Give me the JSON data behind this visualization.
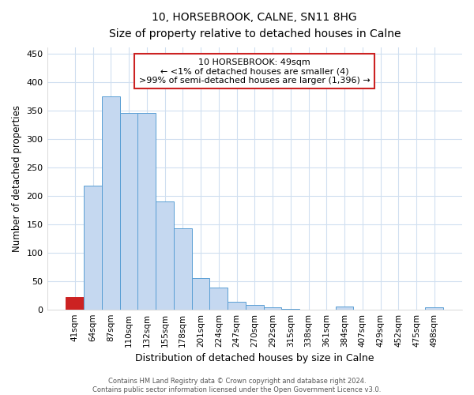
{
  "title": "10, HORSEBROOK, CALNE, SN11 8HG",
  "subtitle": "Size of property relative to detached houses in Calne",
  "xlabel": "Distribution of detached houses by size in Calne",
  "ylabel": "Number of detached properties",
  "bar_labels": [
    "41sqm",
    "64sqm",
    "87sqm",
    "110sqm",
    "132sqm",
    "155sqm",
    "178sqm",
    "201sqm",
    "224sqm",
    "247sqm",
    "270sqm",
    "292sqm",
    "315sqm",
    "338sqm",
    "361sqm",
    "384sqm",
    "407sqm",
    "429sqm",
    "452sqm",
    "475sqm",
    "498sqm"
  ],
  "bar_values": [
    22,
    217,
    375,
    345,
    345,
    190,
    142,
    55,
    38,
    13,
    8,
    4,
    1,
    0,
    0,
    5,
    0,
    0,
    0,
    0,
    4
  ],
  "bar_color_normal": "#c5d8f0",
  "bar_color_highlight": "#cc2222",
  "bar_edge_color": "#5a9fd4",
  "highlight_index": 0,
  "ylim": [
    0,
    460
  ],
  "yticks": [
    0,
    50,
    100,
    150,
    200,
    250,
    300,
    350,
    400,
    450
  ],
  "annotation_lines": [
    "10 HORSEBROOK: 49sqm",
    "← <1% of detached houses are smaller (4)",
    ">99% of semi-detached houses are larger (1,396) →"
  ],
  "footer_line1": "Contains HM Land Registry data © Crown copyright and database right 2024.",
  "footer_line2": "Contains public sector information licensed under the Open Government Licence v3.0.",
  "bg_color": "#ffffff",
  "plot_bg_color": "#ffffff",
  "grid_color": "#d0dff0"
}
